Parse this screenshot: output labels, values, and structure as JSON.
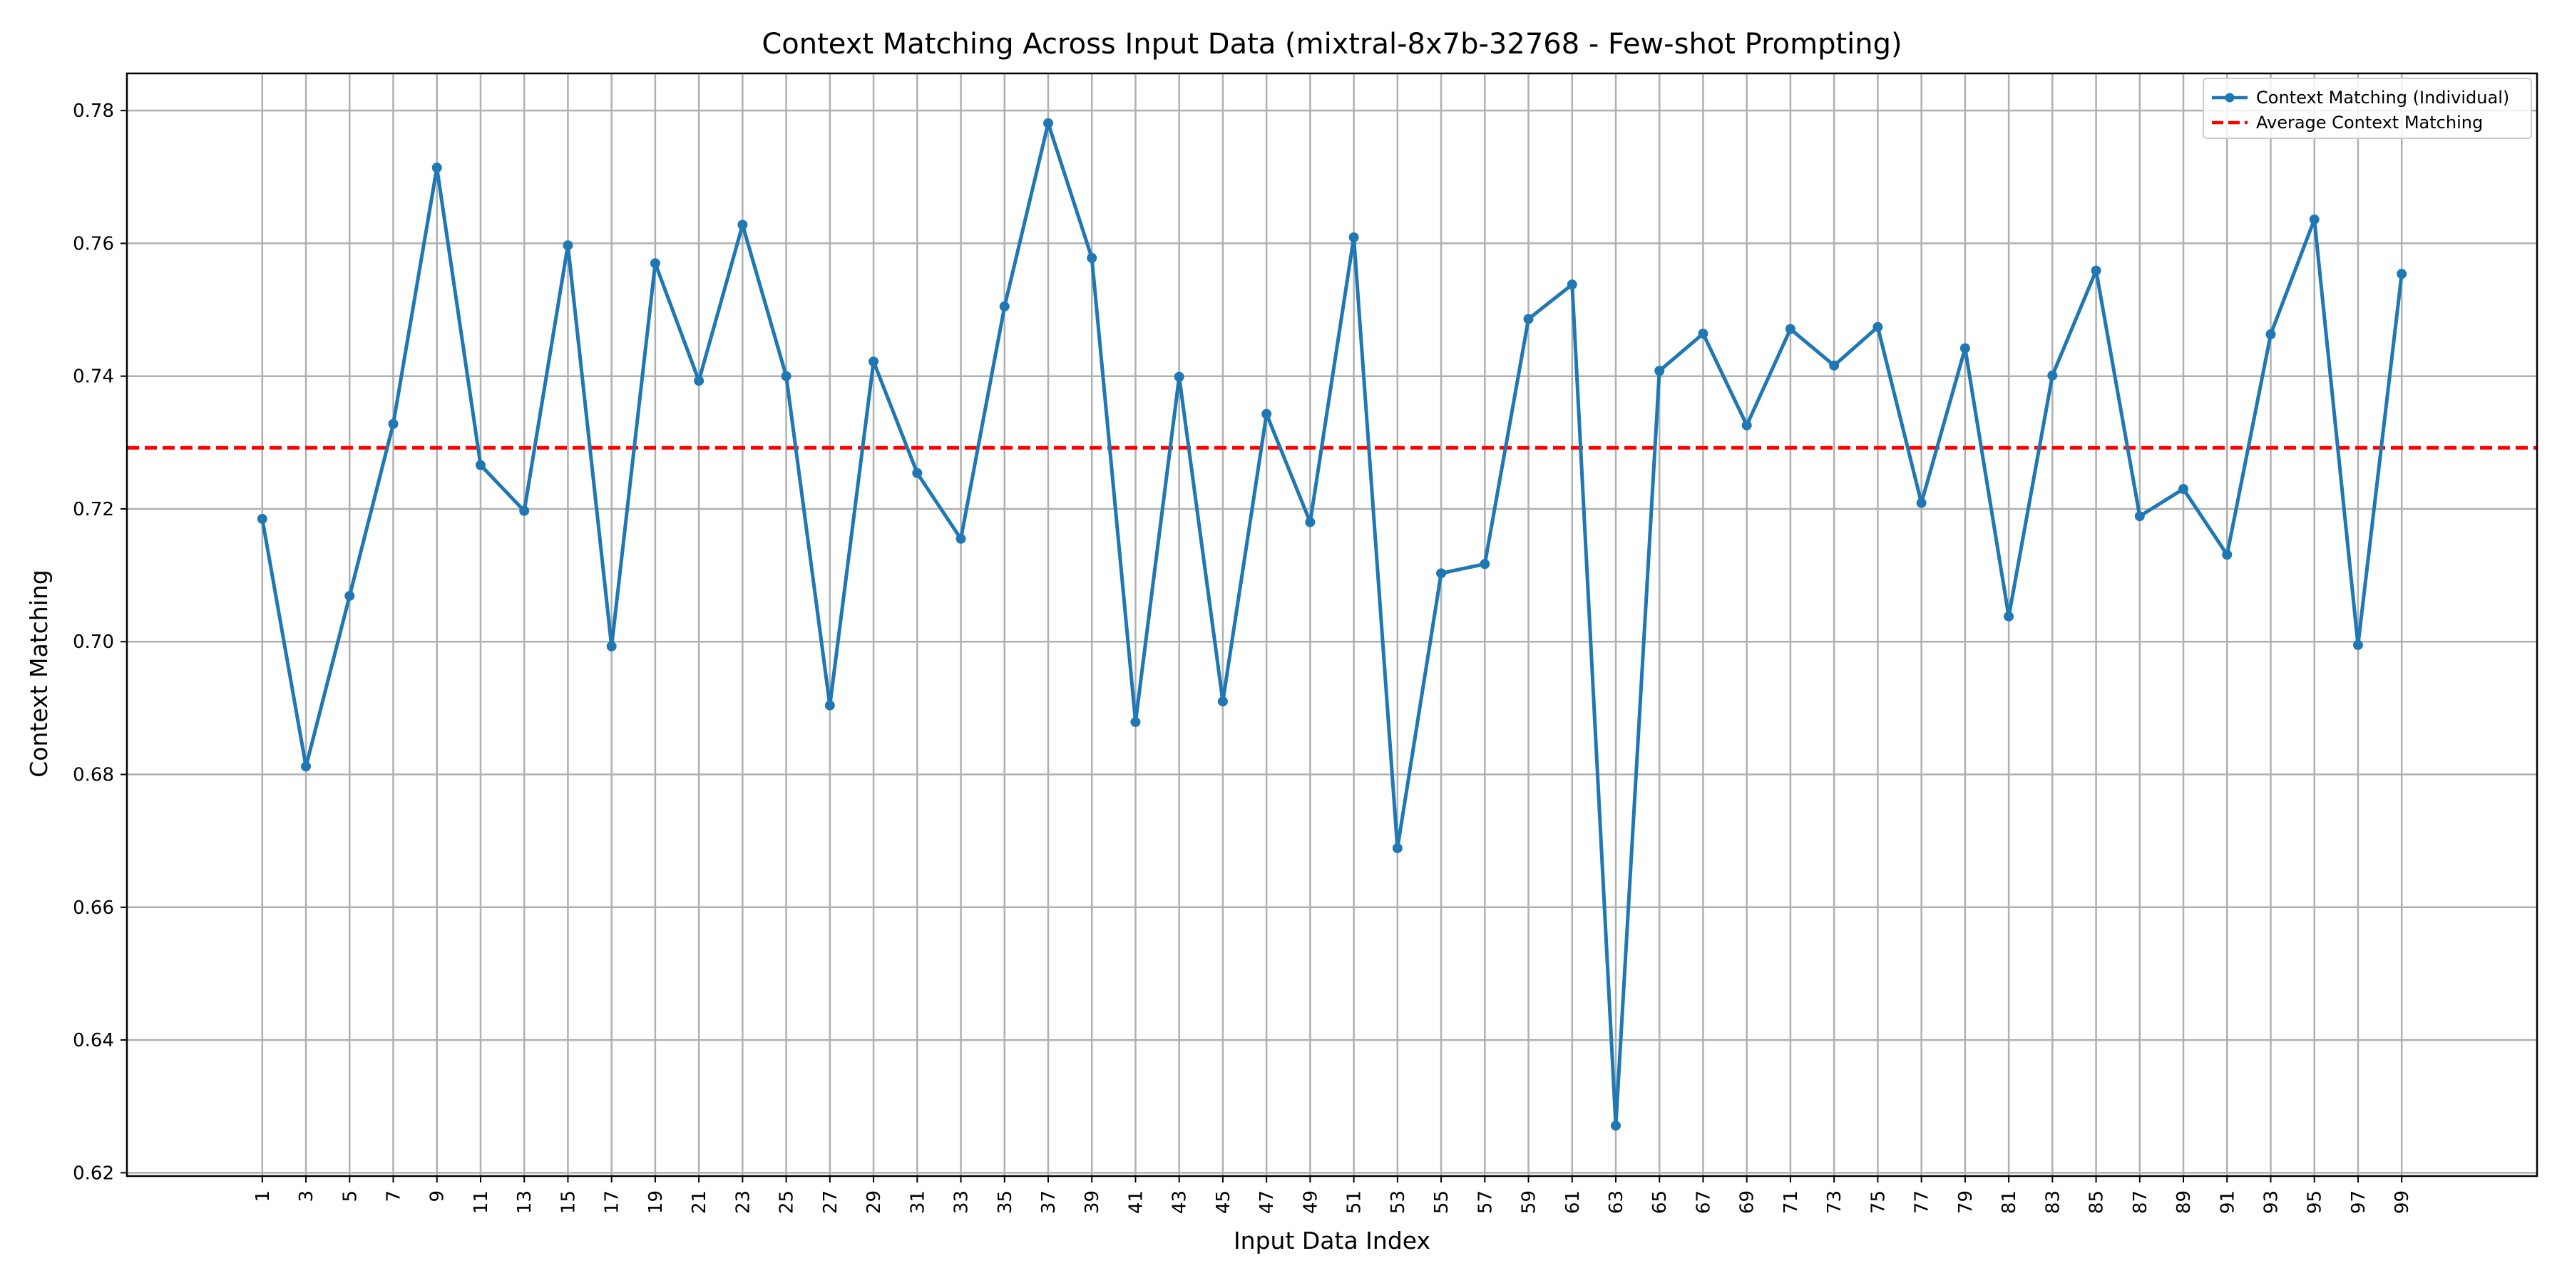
{
  "chart_data": {
    "type": "line",
    "title": "Context Matching Across Input Data (mixtral-8x7b-32768 - Few-shot Prompting)",
    "xlabel": "Input Data Index",
    "ylabel": "Context Matching",
    "x": [
      1,
      3,
      5,
      7,
      9,
      11,
      13,
      15,
      17,
      19,
      21,
      23,
      25,
      27,
      29,
      31,
      33,
      35,
      37,
      39,
      41,
      43,
      45,
      47,
      49,
      51,
      53,
      55,
      57,
      59,
      61,
      63,
      65,
      67,
      69,
      71,
      73,
      75,
      77,
      79,
      81,
      83,
      85,
      87,
      89,
      91,
      93,
      95,
      97,
      99
    ],
    "series": [
      {
        "name": "Context Matching (Individual)",
        "color": "#1f77b4",
        "marker": "circle",
        "values": [
          0.7185,
          0.6812,
          0.7069,
          0.7328,
          0.7714,
          0.7266,
          0.7197,
          0.7597,
          0.6993,
          0.757,
          0.7393,
          0.7628,
          0.74,
          0.6904,
          0.7422,
          0.7254,
          0.7155,
          0.7505,
          0.7781,
          0.7578,
          0.6879,
          0.7399,
          0.691,
          0.7343,
          0.718,
          0.7609,
          0.6689,
          0.7103,
          0.7117,
          0.7486,
          0.7538,
          0.6271,
          0.7408,
          0.7464,
          0.7326,
          0.7471,
          0.7416,
          0.7474,
          0.7209,
          0.7442,
          0.7038,
          0.7401,
          0.7559,
          0.7189,
          0.723,
          0.7131,
          0.7463,
          0.7636,
          0.6995,
          0.7554
        ]
      }
    ],
    "reference_line": {
      "name": "Average Context Matching",
      "value": 0.7292,
      "color": "#ff0000",
      "style": "dashed"
    },
    "xticks": [
      "1",
      "3",
      "5",
      "7",
      "9",
      "11",
      "13",
      "15",
      "17",
      "19",
      "21",
      "23",
      "25",
      "27",
      "29",
      "31",
      "33",
      "35",
      "37",
      "39",
      "41",
      "43",
      "45",
      "47",
      "49",
      "51",
      "53",
      "55",
      "57",
      "59",
      "61",
      "63",
      "65",
      "67",
      "69",
      "71",
      "73",
      "75",
      "77",
      "79",
      "81",
      "83",
      "85",
      "87",
      "89",
      "91",
      "93",
      "95",
      "97",
      "99"
    ],
    "yticks": [
      "0.62",
      "0.64",
      "0.66",
      "0.68",
      "0.70",
      "0.72",
      "0.74",
      "0.76",
      "0.78"
    ],
    "ytick_values": [
      0.62,
      0.64,
      0.66,
      0.68,
      0.7,
      0.72,
      0.74,
      0.76,
      0.78
    ],
    "xlim": [
      -5.2,
      105.2
    ],
    "ylim": [
      0.6195,
      0.7856
    ],
    "grid": true,
    "legend_position": "top-right"
  }
}
